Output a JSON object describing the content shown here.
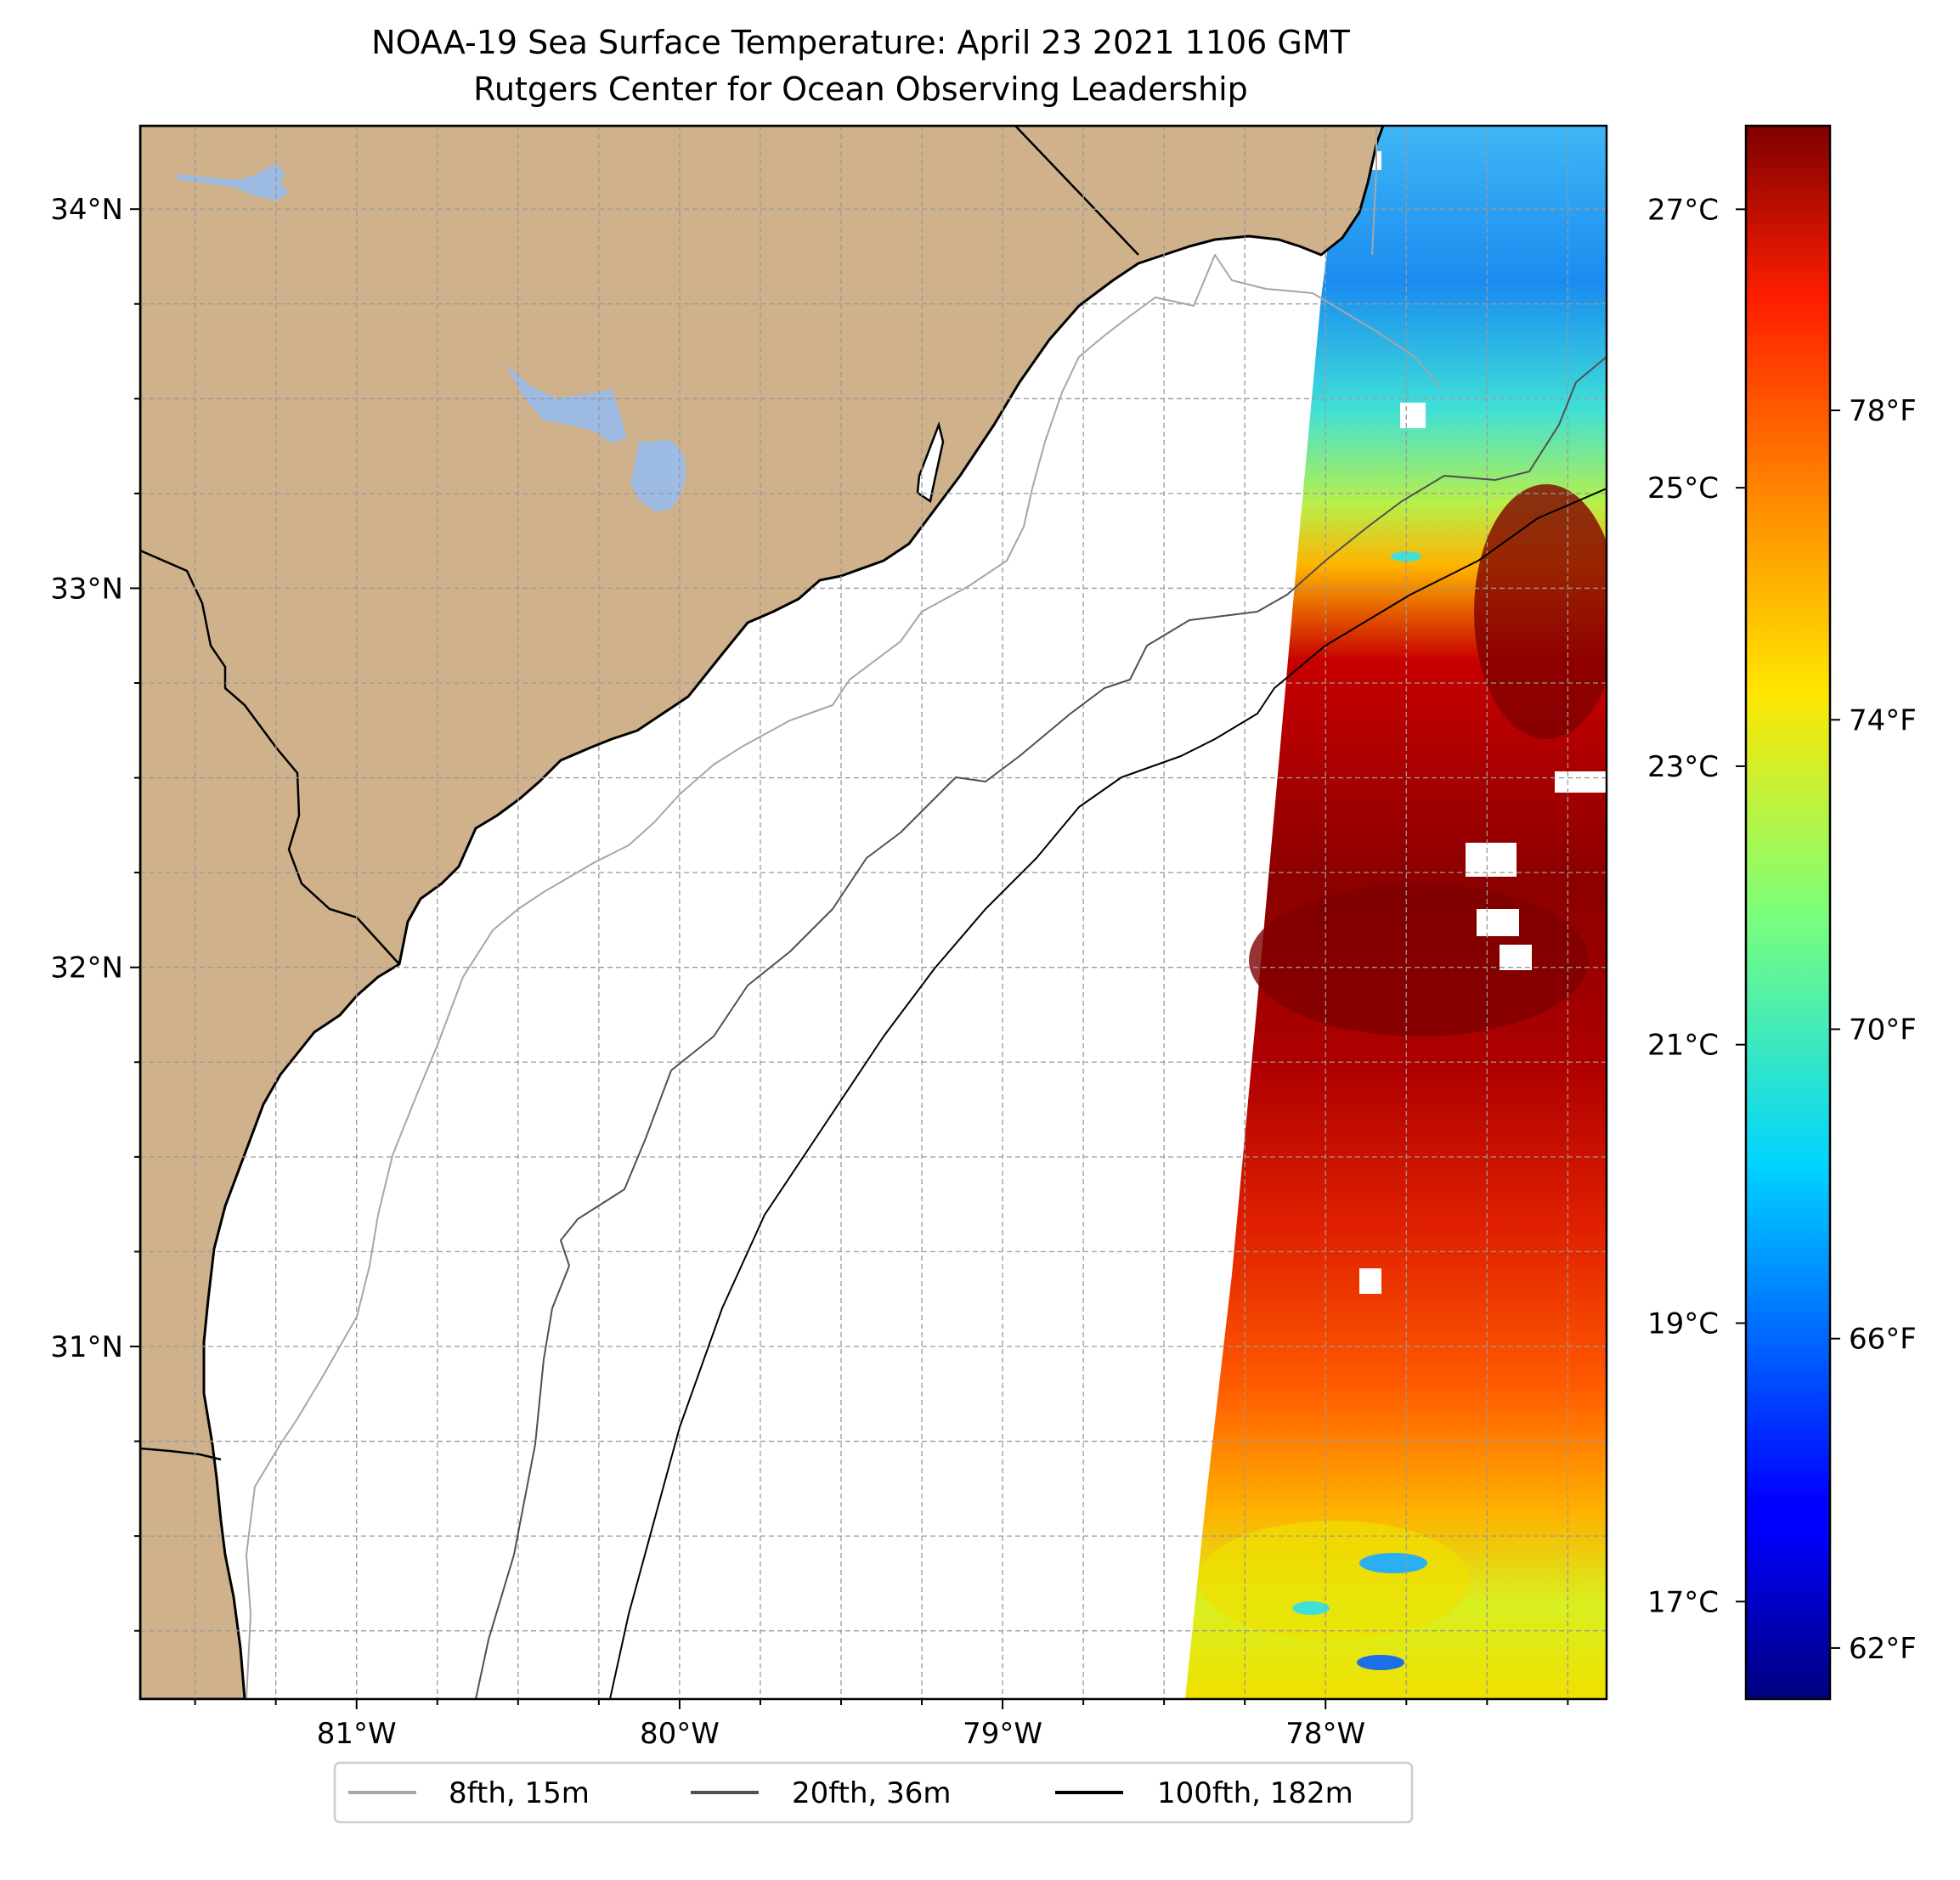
{
  "title": {
    "line1": "NOAA-19 Sea Surface Temperature: April 23 2021 1106 GMT",
    "line2": "Rutgers Center for Ocean Observing Leadership"
  },
  "map": {
    "lon_range": [
      -81.67,
      -77.13
    ],
    "lat_range": [
      30.07,
      34.22
    ],
    "lon_ticks": [
      {
        "value": -81,
        "label": "81°W"
      },
      {
        "value": -80,
        "label": "80°W"
      },
      {
        "value": -79,
        "label": "79°W"
      },
      {
        "value": -78,
        "label": "78°W"
      }
    ],
    "lat_ticks": [
      {
        "value": 31,
        "label": "31°N"
      },
      {
        "value": 32,
        "label": "32°N"
      },
      {
        "value": 33,
        "label": "33°N"
      },
      {
        "value": 34,
        "label": "34°N"
      }
    ],
    "grid": true,
    "land_color": "#cfb28b",
    "lake_color": "#9ebbe3"
  },
  "colorbar": {
    "colormap": "jet",
    "celsius_ticks": [
      {
        "value": 17,
        "label": "17°C"
      },
      {
        "value": 19,
        "label": "19°C"
      },
      {
        "value": 21,
        "label": "21°C"
      },
      {
        "value": 23,
        "label": "23°C"
      },
      {
        "value": 25,
        "label": "25°C"
      },
      {
        "value": 27,
        "label": "27°C"
      }
    ],
    "fahrenheit_ticks": [
      {
        "value": 62,
        "label": "62°F"
      },
      {
        "value": 66,
        "label": "66°F"
      },
      {
        "value": 70,
        "label": "70°F"
      },
      {
        "value": 74,
        "label": "74°F"
      },
      {
        "value": 78,
        "label": "78°F"
      }
    ]
  },
  "legend": {
    "placement": "bottom-center",
    "items": [
      {
        "label": "8fth, 15m",
        "color": "#a6a6a6"
      },
      {
        "label": "20fth, 36m",
        "color": "#505050"
      },
      {
        "label": "100fth, 182m",
        "color": "#000000"
      }
    ]
  }
}
